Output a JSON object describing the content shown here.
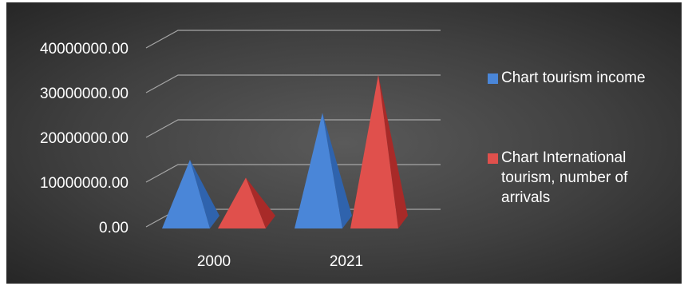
{
  "colors": {
    "series1": "#4a86d8",
    "series1_dark": "#2f63ad",
    "series1_light": "#7eaef0",
    "series2": "#e0504c",
    "series2_dark": "#a82a28",
    "series2_light": "#f07a74",
    "gridline": "#a6a6a6",
    "text": "#ffffff"
  },
  "chart_data": {
    "type": "bar",
    "shape": "3d-pyramid",
    "categories": [
      "2000",
      "2021"
    ],
    "series": [
      {
        "name": "Chart tourism income",
        "values": [
          15000000,
          25500000
        ]
      },
      {
        "name": "Chart International tourism, number of arrivals",
        "values": [
          11000000,
          34000000
        ]
      }
    ],
    "y_ticks": [
      "0.00",
      "10000000.00",
      "20000000.00",
      "30000000.00",
      "40000000.00"
    ],
    "ylim": [
      0,
      40000000
    ],
    "grid": true,
    "legend_position": "right"
  }
}
